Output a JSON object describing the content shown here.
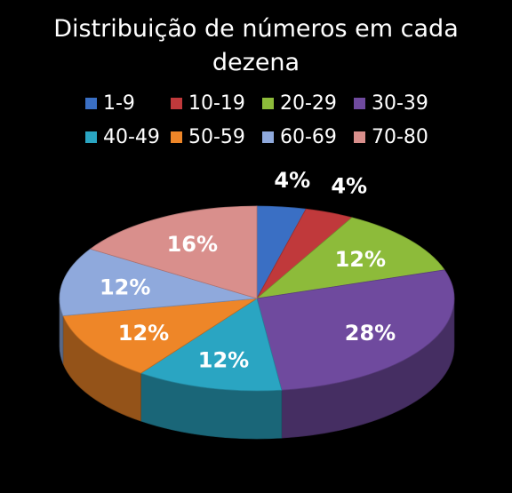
{
  "chart_data": {
    "type": "pie",
    "style": "3d",
    "title_lines": [
      "Distribuição de números em cada",
      "dezena"
    ],
    "legend_placement": "top",
    "slices": [
      {
        "label": "1-9",
        "value": 4,
        "display": "4%",
        "color": "#3a6fc4"
      },
      {
        "label": "10-19",
        "value": 4,
        "display": "4%",
        "color": "#c0393b"
      },
      {
        "label": "20-29",
        "value": 12,
        "display": "12%",
        "color": "#8dbb3a"
      },
      {
        "label": "30-39",
        "value": 28,
        "display": "28%",
        "color": "#6f4a9e"
      },
      {
        "label": "40-49",
        "value": 12,
        "display": "12%",
        "color": "#2aa5c2"
      },
      {
        "label": "50-59",
        "value": 12,
        "display": "12%",
        "color": "#ee8628"
      },
      {
        "label": "60-69",
        "value": 12,
        "display": "12%",
        "color": "#8fa9dc"
      },
      {
        "label": "70-80",
        "value": 16,
        "display": "16%",
        "color": "#d98f8c"
      }
    ]
  }
}
